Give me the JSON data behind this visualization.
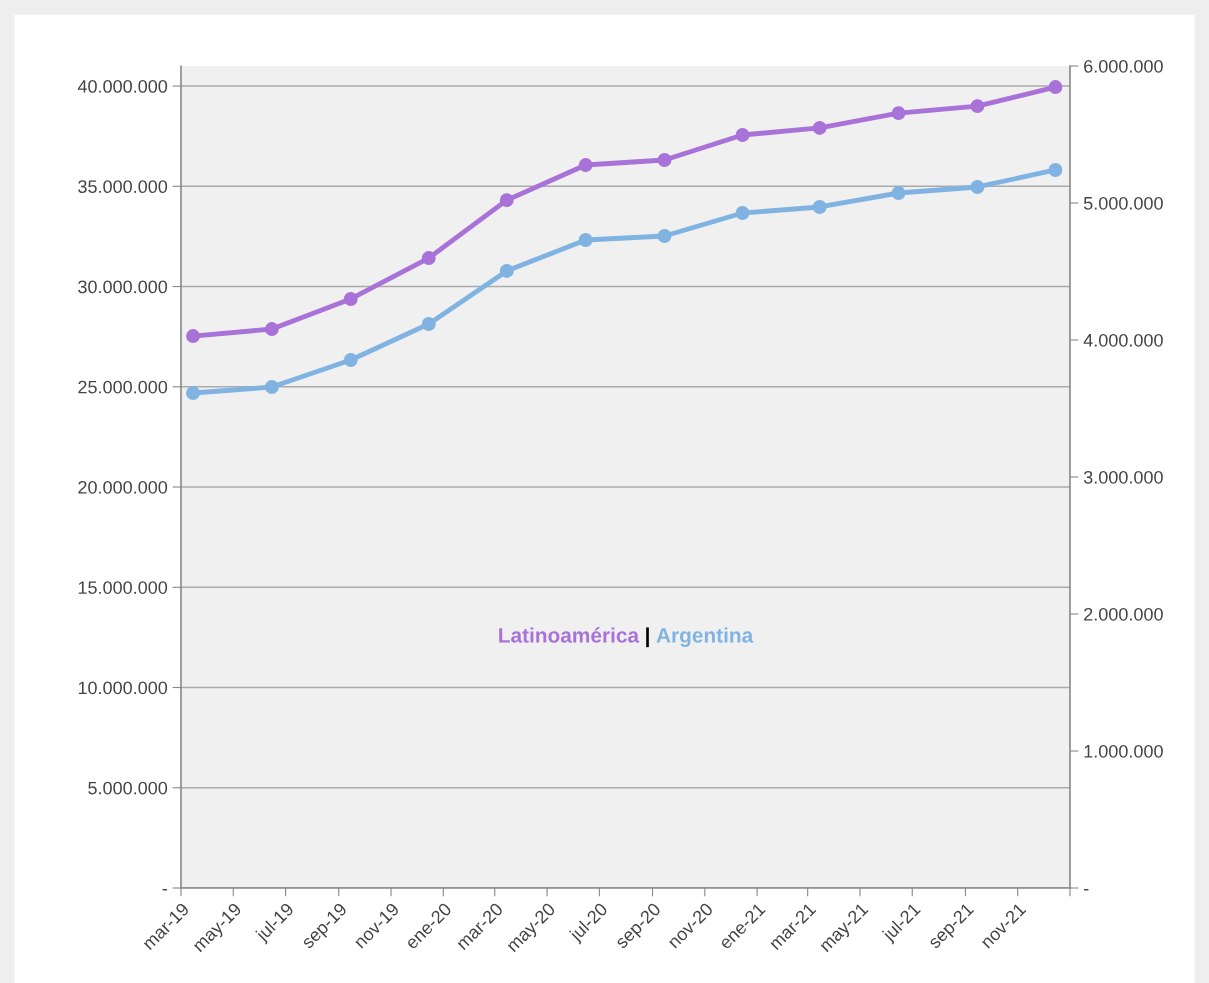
{
  "chart_data": {
    "type": "line",
    "x": [
      "2019-03-15",
      "2019-06-15",
      "2019-09-15",
      "2019-12-15",
      "2020-03-15",
      "2020-06-15",
      "2020-09-15",
      "2020-12-15",
      "2021-03-15",
      "2021-06-15",
      "2021-09-15",
      "2021-12-15"
    ],
    "series": [
      {
        "name": "Latinoamérica",
        "color": "#a872d8",
        "values": [
          27530000,
          27880000,
          29380000,
          31420000,
          34310000,
          36060000,
          36310000,
          37560000,
          37910000,
          38650000,
          39000000,
          39950000
        ]
      },
      {
        "name": "Argentina",
        "color": "#80b3e2",
        "axis": "y2",
        "values": [
          3613000,
          3657000,
          3854000,
          4117000,
          4504000,
          4730000,
          4759000,
          4927000,
          4971000,
          5073000,
          5117000,
          5241000
        ]
      }
    ],
    "xlim": [
      "2019-03-01",
      "2022-01-01"
    ],
    "xticks": [
      {
        "value": "2019-03-01",
        "label": "mar-19"
      },
      {
        "value": "2019-05-01",
        "label": "may-19"
      },
      {
        "value": "2019-07-01",
        "label": "jul-19"
      },
      {
        "value": "2019-09-01",
        "label": "sep-19"
      },
      {
        "value": "2019-11-01",
        "label": "nov-19"
      },
      {
        "value": "2020-01-01",
        "label": "ene-20"
      },
      {
        "value": "2020-03-01",
        "label": "mar-20"
      },
      {
        "value": "2020-05-01",
        "label": "may-20"
      },
      {
        "value": "2020-07-01",
        "label": "jul-20"
      },
      {
        "value": "2020-09-01",
        "label": "sep-20"
      },
      {
        "value": "2020-11-01",
        "label": "nov-20"
      },
      {
        "value": "2021-01-01",
        "label": "ene-21"
      },
      {
        "value": "2021-03-01",
        "label": "mar-21"
      },
      {
        "value": "2021-05-01",
        "label": "may-21"
      },
      {
        "value": "2021-07-01",
        "label": "jul-21"
      },
      {
        "value": "2021-09-01",
        "label": "sep-21"
      },
      {
        "value": "2021-11-01",
        "label": "nov-21"
      },
      {
        "value": "2022-01-01",
        "label": null
      }
    ],
    "ylim": [
      0,
      41000000
    ],
    "yticks": [
      {
        "value": 0,
        "label": "-"
      },
      {
        "value": 5000000,
        "label": "5.000.000"
      },
      {
        "value": 10000000,
        "label": "10.000.000"
      },
      {
        "value": 15000000,
        "label": "15.000.000"
      },
      {
        "value": 20000000,
        "label": "20.000.000"
      },
      {
        "value": 25000000,
        "label": "25.000.000"
      },
      {
        "value": 30000000,
        "label": "30.000.000"
      },
      {
        "value": 35000000,
        "label": "35.000.000"
      },
      {
        "value": 40000000,
        "label": "40.000.000"
      }
    ],
    "y2lim": [
      0,
      6000000
    ],
    "y2ticks": [
      {
        "value": 0,
        "label": "-"
      },
      {
        "value": 1000000,
        "label": "1.000.000"
      },
      {
        "value": 2000000,
        "label": "2.000.000"
      },
      {
        "value": 3000000,
        "label": "3.000.000"
      },
      {
        "value": 4000000,
        "label": "4.000.000"
      },
      {
        "value": 5000000,
        "label": "5.000.000"
      },
      {
        "value": 6000000,
        "label": "6.000.000"
      }
    ],
    "annotations": [
      "|"
    ],
    "grid": "y",
    "legend": "center",
    "marker": "circle",
    "line_style": "solid"
  }
}
